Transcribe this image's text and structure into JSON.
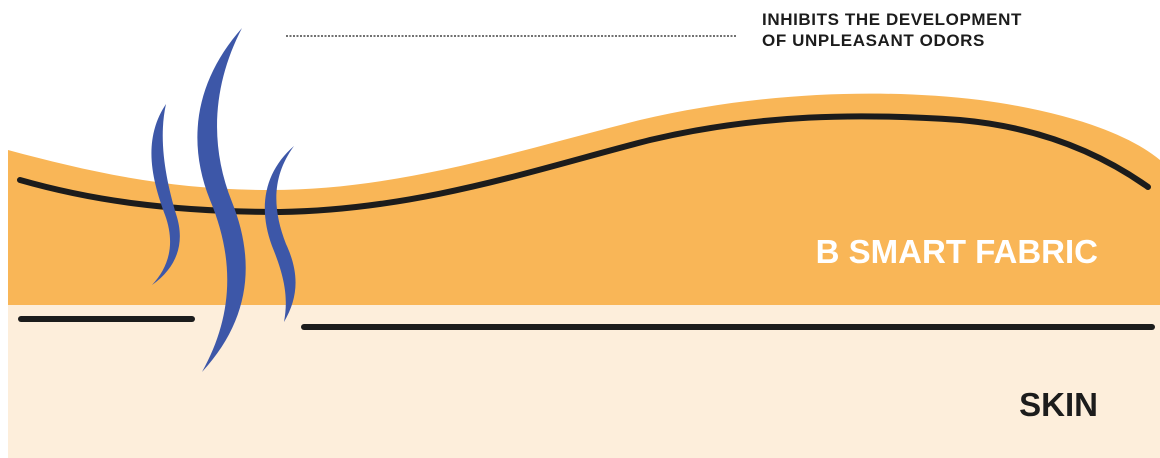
{
  "callout": {
    "line1": "INHIBITS THE DEVELOPMENT",
    "line2": "OF UNPLEASANT ODORS"
  },
  "layers": {
    "fabric_label": "B SMART FABRIC",
    "skin_label": "SKIN"
  },
  "colors": {
    "fabric": "#f9b657",
    "skin": "#fdeedb",
    "odor_wave": "#3d57a8",
    "line": "#1c1c1c"
  },
  "icons": {
    "odor": "odor-waves-icon"
  }
}
